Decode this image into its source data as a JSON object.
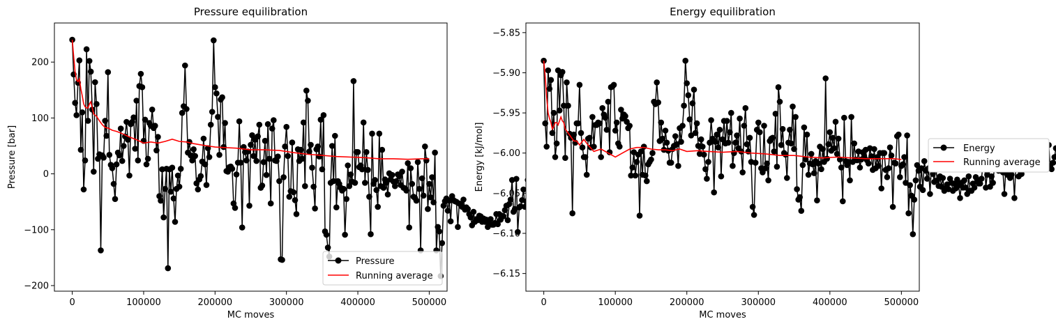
{
  "chart_data": [
    {
      "type": "line",
      "title": "Pressure equilibration",
      "xlabel": "MC moves",
      "ylabel": "Pressure  [bar]",
      "xlim": [
        -25000,
        525000
      ],
      "ylim": [
        -210,
        270
      ],
      "xticks": [
        0,
        100000,
        200000,
        300000,
        400000,
        500000
      ],
      "xtick_labels": [
        "0",
        "100000",
        "200000",
        "300000",
        "400000",
        "500000"
      ],
      "yticks": [
        -200,
        -100,
        0,
        100,
        200
      ],
      "ytick_labels": [
        "−200",
        "−100",
        "0",
        "100",
        "200"
      ],
      "grid": false,
      "legend_position": "lower-right",
      "series": [
        {
          "name": "Pressure",
          "color": "#000000",
          "marker": "circle",
          "x_start": 0,
          "x_step": 2000,
          "values": [
            240,
            178,
            127,
            105,
            163,
            203,
            43,
            110,
            -28,
            24,
            223,
            95,
            202,
            183,
            115,
            4,
            164,
            125,
            27,
            35,
            -137,
            33,
            29,
            95,
            68,
            182,
            34,
            16,
            10,
            -18,
            -45,
            17,
            38,
            33,
            81,
            23,
            50,
            67,
            93,
            61,
            -3,
            89,
            93,
            101,
            45,
            131,
            24,
            157,
            179,
            155,
            59,
            97,
            17,
            27,
            91,
            86,
            115,
            82,
            86,
            42,
            66,
            -40,
            -48,
            8,
            -78,
            -27,
            9,
            -169,
            8,
            -32,
            11,
            -44,
            -86,
            -27,
            -3,
            -23,
            9,
            109,
            121,
            194,
            116,
            38,
            57,
            33,
            24,
            44,
            32,
            -17,
            -28,
            -10,
            -4,
            22,
            63,
            17,
            -20,
            46,
            30,
            88,
            111,
            239,
            155,
            144,
            102,
            34,
            133,
            137,
            48,
            91,
            5,
            4,
            12,
            13,
            9,
            -53,
            -61,
            -1,
            20,
            94,
            20,
            -96,
            48,
            39,
            24,
            40,
            -57,
            52,
            69,
            32,
            61,
            23,
            67,
            88,
            -25,
            -21,
            21,
            59,
            -2,
            89,
            27,
            -53,
            81,
            96,
            24,
            23,
            31,
            -13,
            -153,
            -154,
            -6,
            49,
            84,
            32,
            -41,
            -31,
            56,
            -33,
            -47,
            -72,
            44,
            23,
            43,
            27,
            92,
            -22,
            149,
            131,
            40,
            52,
            11,
            -23,
            -62,
            44,
            49,
            31,
            97,
            8,
            105,
            -103,
            -109,
            -132,
            -148,
            -16,
            50,
            -13,
            68,
            -60,
            -13,
            -18,
            -25,
            -30,
            -27,
            -109,
            -45,
            15,
            -22,
            -1,
            -14,
            166,
            -16,
            39,
            39,
            12,
            15,
            8,
            92,
            -16,
            39,
            7,
            -41,
            -108,
            72,
            -18,
            -11,
            -29,
            -59,
            72,
            -22,
            43,
            -25,
            -10,
            -16,
            -37,
            1,
            -10,
            -2,
            -14,
            -22,
            -13,
            -1,
            -4,
            -20,
            4,
            -25,
            -26,
            -30,
            19,
            -96,
            10,
            -18,
            -41,
            -43,
            -48,
            21,
            -27,
            -137,
            -8,
            -39,
            49,
            24,
            -63,
            -18,
            -42,
            -6,
            -51,
            38,
            -137,
            -95,
            -103,
            -183,
            -124,
            -57,
            -49,
            -44,
            -66,
            -48,
            -85,
            -40,
            -47,
            -49,
            -50,
            -95,
            -53,
            -55,
            -59,
            -46,
            -64,
            -60,
            -63,
            -72,
            -78,
            -92,
            -68,
            -86,
            -81,
            -83,
            -75,
            -76,
            -86,
            -80,
            -86,
            -82,
            -95,
            -87,
            -81,
            -91,
            -91,
            -88,
            -72,
            -90,
            -72,
            -82,
            -75,
            -76,
            -65,
            -57,
            -83,
            -54,
            -46,
            -11,
            -68,
            -63,
            -9,
            -104,
            -60,
            -58,
            -47,
            -28,
            -59,
            -49,
            -11,
            -55,
            -44,
            -80,
            -46,
            -41,
            -35,
            -60,
            -35,
            -45,
            -103,
            -52,
            -5,
            -40,
            -53,
            -44,
            -27,
            -12,
            -23,
            -41,
            -11,
            -20,
            -43,
            -23,
            -26,
            -30,
            -2,
            4,
            -11,
            1,
            -22,
            -14,
            -18,
            -22,
            1,
            -31,
            -22,
            -34,
            -2,
            -8,
            -11,
            -9,
            -2,
            -8,
            -18,
            -24,
            -1,
            -26,
            -17,
            -24,
            -35,
            -28,
            7,
            -14,
            -44,
            -41,
            0,
            -22,
            -33,
            -35,
            0,
            6,
            -12,
            -28,
            -15,
            -12,
            -45,
            -29,
            -36,
            -16,
            -37,
            -24,
            -30,
            -21,
            -36,
            -23,
            -41,
            -42,
            -34,
            -51,
            -23,
            -19,
            -29,
            -41,
            -24,
            -16,
            -23,
            -29,
            -42,
            -23,
            -40,
            -32,
            -26,
            -19,
            -34,
            -26,
            -9,
            -13,
            -38,
            -28,
            -16,
            -33,
            -22,
            -23,
            -22,
            -37,
            -31,
            -10,
            -28,
            -38,
            -27,
            -36,
            -37,
            -34,
            -40,
            -31,
            -32,
            -22,
            -28,
            -33,
            -25,
            -29,
            -37,
            -42,
            -39,
            -31,
            -26,
            -29,
            -40,
            -41,
            -37,
            -42,
            -39,
            -32,
            -26,
            -29,
            -33,
            -31,
            -27,
            -25,
            -31,
            -36,
            -42,
            -39,
            -41,
            -38,
            -31,
            -29,
            -23,
            -25,
            -32,
            -33,
            -41,
            -40,
            -36,
            -31,
            -28,
            -27,
            -30,
            -35
          ],
          "note_omitted": "",
          "values_source": "estimated"
        },
        {
          "name": "Running average",
          "color": "#ff0000",
          "marker": "none",
          "x": [
            0,
            2000,
            4000,
            6000,
            8000,
            10000,
            12000,
            14000,
            16000,
            18000,
            20000,
            22000,
            24000,
            26000,
            28000,
            30000,
            34000,
            38000,
            42000,
            46000,
            50000,
            56000,
            62000,
            70000,
            80000,
            90000,
            100000,
            110000,
            120000,
            130000,
            140000,
            150000,
            160000,
            170000,
            180000,
            190000,
            200000,
            215000,
            230000,
            250000,
            270000,
            290000,
            310000,
            330000,
            350000,
            370000,
            390000,
            410000,
            430000,
            450000,
            470000,
            490000,
            500000
          ],
          "values": [
            240,
            210,
            182,
            168,
            165,
            170,
            152,
            140,
            125,
            120,
            118,
            118,
            125,
            129,
            118,
            107,
            103,
            95,
            88,
            83,
            82,
            78,
            76,
            72,
            66,
            61,
            55,
            57,
            55,
            58,
            62,
            58,
            57,
            54,
            52,
            50,
            48,
            47,
            46,
            43,
            43,
            42,
            38,
            35,
            33,
            31,
            30,
            29,
            27,
            27,
            26,
            27,
            27
          ]
        }
      ]
    },
    {
      "type": "line",
      "title": "Energy equilibration",
      "xlabel": "MC moves",
      "ylabel": "Energy  [kJ/mol]",
      "xlim": [
        -25000,
        525000
      ],
      "ylim": [
        -6.172,
        -5.838
      ],
      "xticks": [
        0,
        100000,
        200000,
        300000,
        400000,
        500000
      ],
      "xtick_labels": [
        "0",
        "100000",
        "200000",
        "300000",
        "400000",
        "500000"
      ],
      "yticks": [
        -6.15,
        -6.1,
        -6.05,
        -6.0,
        -5.95,
        -5.9,
        -5.85
      ],
      "ytick_labels": [
        "−6.15",
        "−6.10",
        "−6.05",
        "−6.00",
        "−5.95",
        "−5.90",
        "−5.85"
      ],
      "grid": false,
      "legend_position": "outside-right",
      "series": [
        {
          "name": "Energy",
          "color": "#000000",
          "marker": "circle",
          "x_start": 0,
          "x_step": 2000,
          "values_source": "estimated"
        },
        {
          "name": "Running average",
          "color": "#ff0000",
          "marker": "none",
          "x": [
            0,
            2000,
            4000,
            6000,
            8000,
            10000,
            12000,
            14000,
            16000,
            18000,
            20000,
            22000,
            24000,
            26000,
            28000,
            30000,
            34000,
            38000,
            42000,
            46000,
            50000,
            56000,
            62000,
            70000,
            80000,
            90000,
            100000,
            110000,
            120000,
            130000,
            140000,
            150000,
            160000,
            170000,
            180000,
            190000,
            200000,
            215000,
            230000,
            250000,
            270000,
            290000,
            310000,
            330000,
            350000,
            370000,
            390000,
            410000,
            430000,
            450000,
            470000,
            490000,
            500000
          ],
          "values": [
            -5.885,
            -5.905,
            -5.93,
            -5.95,
            -5.957,
            -5.962,
            -5.97,
            -5.967,
            -5.962,
            -5.962,
            -5.965,
            -5.96,
            -5.955,
            -5.96,
            -5.962,
            -5.97,
            -5.975,
            -5.98,
            -5.985,
            -5.985,
            -5.99,
            -5.983,
            -5.99,
            -5.998,
            -5.995,
            -6.0,
            -6.005,
            -6.0,
            -5.995,
            -5.993,
            -5.993,
            -5.995,
            -5.996,
            -5.996,
            -5.997,
            -5.995,
            -5.998,
            -5.997,
            -5.998,
            -5.999,
            -5.998,
            -6.0,
            -6.001,
            -6.003,
            -6.003,
            -6.005,
            -6.006,
            -6.005,
            -6.006,
            -6.007,
            -6.007,
            -6.007,
            -6.008
          ]
        }
      ]
    }
  ]
}
